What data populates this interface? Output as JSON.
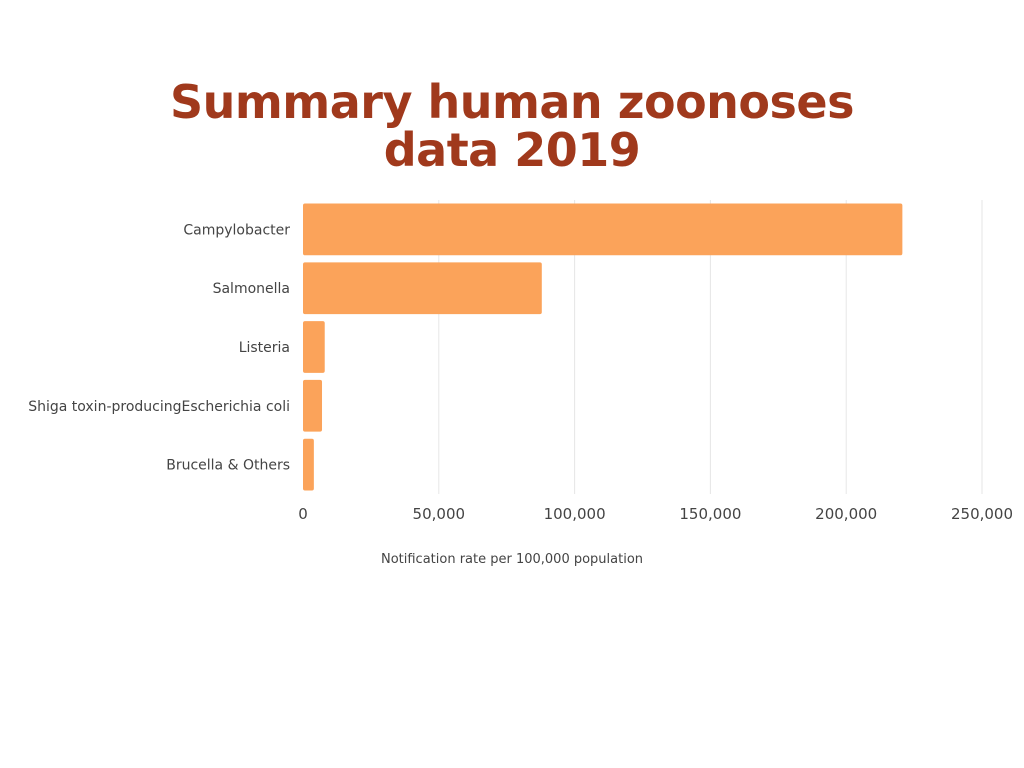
{
  "chart_data": {
    "type": "bar",
    "orientation": "horizontal",
    "title_lines": [
      "Summary human zoonoses",
      "data 2019"
    ],
    "categories": [
      "Campylobacter",
      "Salmonella",
      "Listeria",
      "Shiga toxin-producingEscherichia coli",
      "Brucella & Others"
    ],
    "values": [
      220682,
      87923,
      8000,
      7000,
      4000
    ],
    "xlabel": "Notification rate per 100,000 population",
    "ylabel": "",
    "xlim": [
      0,
      250000
    ],
    "xticks": [
      0,
      50000,
      100000,
      150000,
      200000,
      250000
    ],
    "xtick_labels": [
      "0",
      "50,000",
      "100,000",
      "150,000",
      "200,000",
      "250,000"
    ],
    "grid": "vertical",
    "legend": "none",
    "colors": {
      "bar": "#fba35a",
      "title": "#a0391c",
      "grid": "#e6e6e6",
      "text": "#444444"
    }
  }
}
